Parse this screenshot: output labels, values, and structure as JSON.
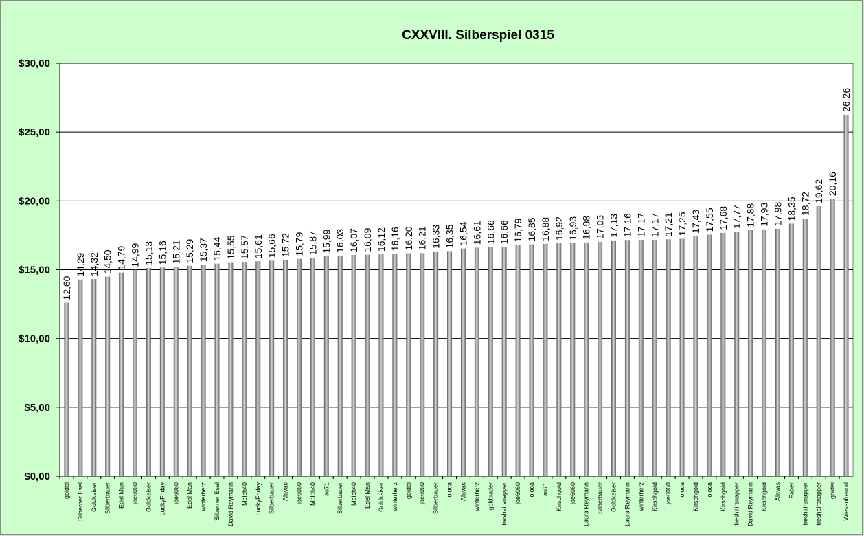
{
  "chart_data": {
    "type": "bar",
    "title": "CXXVIII.  Silberspiel 0315",
    "xlabel": "",
    "ylabel": "",
    "ylim": [
      0,
      30
    ],
    "yticks": [
      "$0,00",
      "$5,00",
      "$10,00",
      "$15,00",
      "$20,00",
      "$25,00",
      "$30,00"
    ],
    "grid": true,
    "legend": "none",
    "colors": {
      "background": "#ccffcc",
      "plot_area": "#ffffff",
      "bar": "#8c8c8c",
      "gridline": "#000000"
    },
    "categories": [
      "goldei",
      "Silberner Esel",
      "Goldkaiser",
      "Silberbauer",
      "Edel Man",
      "joe6060",
      "Goldkaiser",
      "LuckyFriday",
      "joe6060",
      "Edel Man",
      "winterherz",
      "Silberner Esel",
      "David Reymann",
      "Molch40",
      "LuckyFriday",
      "Silberbauer",
      "Alavas",
      "joe6060",
      "Molch40",
      "au71",
      "Silberbauer",
      "Molch40",
      "Edel Man",
      "Goldkaiser",
      "winterherz",
      "goldei",
      "joe6060",
      "Silberbauer",
      "loloca",
      "Alavas",
      "winterherz",
      "goldtrader",
      "freshairsnapper",
      "joe6060",
      "loloca",
      "au71",
      "Kirschgold",
      "joe6060",
      "Laura Reymann",
      "Silberbauer",
      "Goldkaiser",
      "Laura Reymann",
      "winterherz",
      "Kirschgold",
      "joe6060",
      "loloca",
      "Kirschgold",
      "loloca",
      "Kirschgold",
      "freshairsnapper",
      "David Reymann",
      "Kirschgold",
      "Alavas",
      "Faber",
      "freshairsnapper",
      "freshairsnapper",
      "goldei",
      "Wiesenfreund"
    ],
    "values": [
      12.6,
      14.29,
      14.32,
      14.5,
      14.79,
      14.99,
      15.13,
      15.16,
      15.21,
      15.29,
      15.37,
      15.44,
      15.55,
      15.57,
      15.61,
      15.66,
      15.72,
      15.79,
      15.87,
      15.99,
      16.03,
      16.07,
      16.09,
      16.12,
      16.16,
      16.2,
      16.21,
      16.33,
      16.35,
      16.54,
      16.61,
      16.66,
      16.66,
      16.79,
      16.85,
      16.88,
      16.92,
      16.93,
      16.98,
      17.03,
      17.13,
      17.16,
      17.17,
      17.17,
      17.21,
      17.25,
      17.43,
      17.55,
      17.68,
      17.77,
      17.88,
      17.93,
      17.98,
      18.35,
      18.72,
      19.62,
      20.16,
      26.26
    ],
    "value_labels": [
      "12,60",
      "14,29",
      "14,32",
      "14,50",
      "14,79",
      "14,99",
      "15,13",
      "15,16",
      "15,21",
      "15,29",
      "15,37",
      "15,44",
      "15,55",
      "15,57",
      "15,61",
      "15,66",
      "15,72",
      "15,79",
      "15,87",
      "15,99",
      "16,03",
      "16,07",
      "16,09",
      "16,12",
      "16,16",
      "16,20",
      "16,21",
      "16,33",
      "16,35",
      "16,54",
      "16,61",
      "16,66",
      "16,66",
      "16,79",
      "16,85",
      "16,88",
      "16,92",
      "16,93",
      "16,98",
      "17,03",
      "17,13",
      "17,16",
      "17,17",
      "17,17",
      "17,21",
      "17,25",
      "17,43",
      "17,55",
      "17,68",
      "17,77",
      "17,88",
      "17,93",
      "17,98",
      "18,35",
      "18,72",
      "19,62",
      "20,16",
      "26,26"
    ]
  }
}
